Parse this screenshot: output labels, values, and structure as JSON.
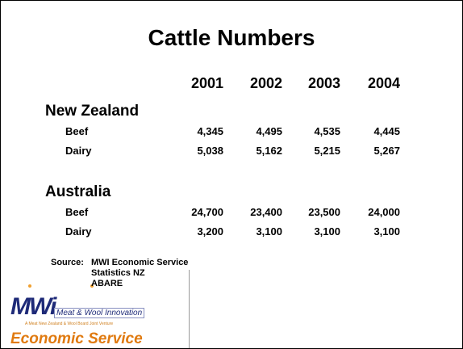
{
  "title": "Cattle Numbers",
  "table": {
    "columns": [
      "2001",
      "2002",
      "2003",
      "2004"
    ],
    "sections": [
      {
        "name": "New Zealand",
        "rows": [
          {
            "label": "Beef",
            "values": [
              "4,345",
              "4,495",
              "4,535",
              "4,445"
            ]
          },
          {
            "label": "Dairy",
            "values": [
              "5,038",
              "5,162",
              "5,215",
              "5,267"
            ]
          }
        ]
      },
      {
        "name": "Australia",
        "rows": [
          {
            "label": "Beef",
            "values": [
              "24,700",
              "23,400",
              "23,500",
              "24,000"
            ]
          },
          {
            "label": "Dairy",
            "values": [
              "3,200",
              "3,100",
              "3,100",
              "3,100"
            ]
          }
        ]
      }
    ]
  },
  "source": {
    "label": "Source:",
    "lines": [
      "MWI Economic Service",
      "Statistics NZ",
      "ABARE"
    ]
  },
  "logo": {
    "mark": "MWi",
    "name": "Meat & Wool Innovation",
    "tagline": "A Meat New Zealand & Wool Board Joint Venture",
    "service": "Economic Service"
  }
}
